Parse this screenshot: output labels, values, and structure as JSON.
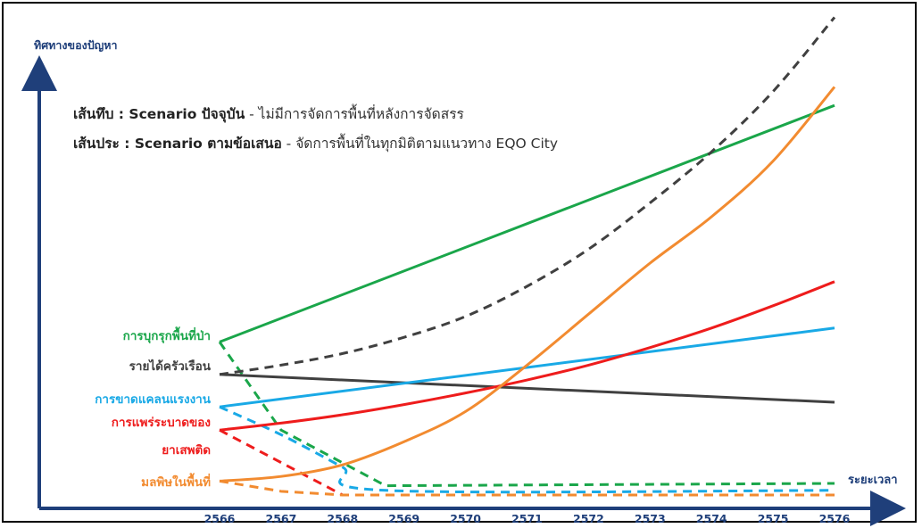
{
  "chart_data": {
    "type": "line",
    "ylabel": "ทิศทางของปัญหา",
    "xlabel": "ระยะเวลา",
    "x": [
      2566,
      2567,
      2568,
      2569,
      2570,
      2571,
      2572,
      2573,
      2574,
      2575,
      2576
    ],
    "xlim": [
      2566,
      2576
    ],
    "ylim": [
      0,
      100
    ],
    "legend_notes": [
      {
        "bold": "เส้นทึบ : Scenario ปัจจุบัน",
        "rest": " - ไม่มีการจัดการพื้นที่หลังการจัดสรร"
      },
      {
        "bold": "เส้นประ : Scenario ตามข้อเสนอ",
        "rest": " - จัดการพื้นที่ในทุกมิติตามแนวทาง EQO City"
      }
    ],
    "series": [
      {
        "name": "การบุกรุกพื้นที่ป่า",
        "color": "#1aa64a",
        "current": [
          [
            2566,
            33
          ],
          [
            2576,
            84
          ]
        ],
        "proposed": [
          [
            2566,
            33
          ],
          [
            2567,
            14
          ],
          [
            2568.7,
            2
          ],
          [
            2576,
            2.5
          ]
        ]
      },
      {
        "name": "รายได้ครัวเรือน",
        "color": "#404040",
        "current": [
          [
            2566,
            26
          ],
          [
            2576,
            20
          ]
        ],
        "proposed": [
          [
            2566,
            26
          ],
          [
            2567,
            28
          ],
          [
            2568,
            30.5
          ],
          [
            2569,
            34
          ],
          [
            2570,
            38.5
          ],
          [
            2571,
            45
          ],
          [
            2572,
            53
          ],
          [
            2573,
            63
          ],
          [
            2574,
            74
          ],
          [
            2575,
            87
          ],
          [
            2576,
            103
          ]
        ]
      },
      {
        "name": "การขาดแคลนแรงงาน",
        "color": "#19a9e6",
        "current": [
          [
            2566,
            19
          ],
          [
            2576,
            36
          ]
        ],
        "proposed": [
          [
            2566,
            19
          ],
          [
            2567,
            13
          ],
          [
            2568,
            6
          ],
          [
            2568.7,
            1
          ],
          [
            2576,
            1
          ]
        ]
      },
      {
        "name": "การแพร่ระบาดของ ยาเสพติด",
        "label_lines": [
          "การแพร่ระบาดของ",
          "ยาเสพติด"
        ],
        "color": "#ee1c1c",
        "current": [
          [
            2566,
            14
          ],
          [
            2567,
            15.5
          ],
          [
            2568,
            17.3
          ],
          [
            2569,
            19.5
          ],
          [
            2570,
            22
          ],
          [
            2571,
            24.8
          ],
          [
            2572,
            28
          ],
          [
            2573,
            31.8
          ],
          [
            2574,
            36
          ],
          [
            2575,
            40.8
          ],
          [
            2576,
            46
          ]
        ],
        "proposed": [
          [
            2566,
            14
          ],
          [
            2568,
            0
          ],
          [
            2576,
            0
          ]
        ]
      },
      {
        "name": "มลพิษในพื้นที่",
        "color": "#f28b30",
        "current": [
          [
            2566,
            3
          ],
          [
            2567,
            4
          ],
          [
            2568,
            6.5
          ],
          [
            2569,
            11.5
          ],
          [
            2570,
            18
          ],
          [
            2571,
            28
          ],
          [
            2572,
            39
          ],
          [
            2573,
            50
          ],
          [
            2574,
            60
          ],
          [
            2575,
            72
          ],
          [
            2576,
            88
          ]
        ],
        "proposed": [
          [
            2566,
            3
          ],
          [
            2567,
            0.8
          ],
          [
            2568,
            0
          ],
          [
            2576,
            0
          ]
        ]
      }
    ]
  }
}
